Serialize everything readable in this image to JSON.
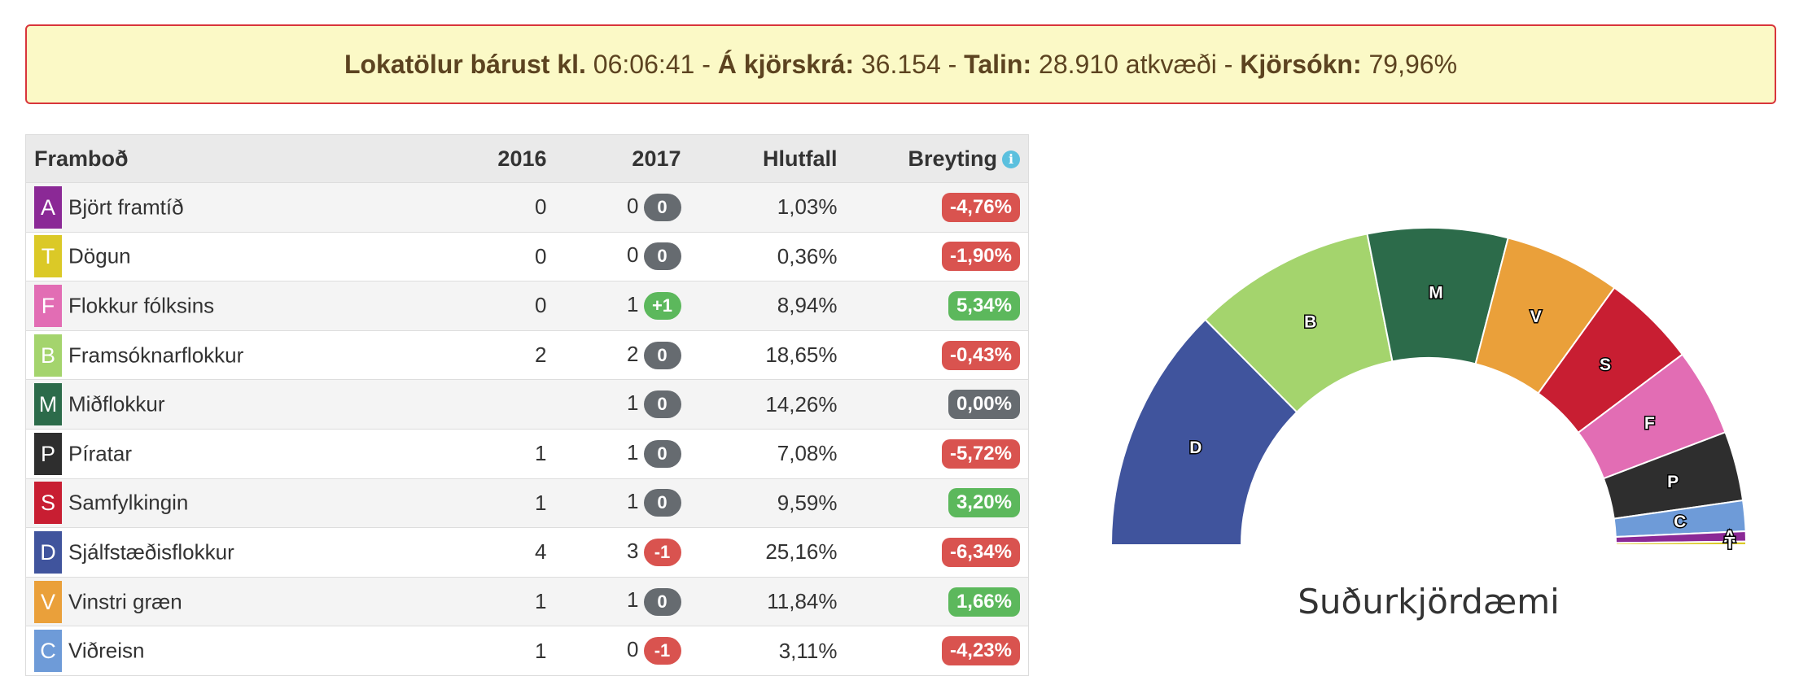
{
  "banner": {
    "received_label": "Lokatölur bárust kl.",
    "received_time": "06:06:41",
    "electorate_label": "Á kjörskrá:",
    "electorate_value": "36.154",
    "counted_label": "Talin:",
    "counted_value": "28.910 atkvæði",
    "turnout_label": "Kjörsókn:",
    "turnout_value": "79,96%"
  },
  "table": {
    "headers": {
      "party": "Framboð",
      "y2016": "2016",
      "y2017": "2017",
      "share": "Hlutfall",
      "change": "Breyting"
    },
    "rows": [
      {
        "letter": "A",
        "color": "#8b2996",
        "name": "Björt framtíð",
        "seats_2016": "0",
        "seats_2017": "0",
        "seat_change": "0",
        "seat_change_color": "#666b70",
        "share": "1,03%",
        "change": "-4,76%",
        "change_color": "#d9534f"
      },
      {
        "letter": "T",
        "color": "#dbc927",
        "name": "Dögun",
        "seats_2016": "0",
        "seats_2017": "0",
        "seat_change": "0",
        "seat_change_color": "#666b70",
        "share": "0,36%",
        "change": "-1,90%",
        "change_color": "#d9534f"
      },
      {
        "letter": "F",
        "color": "#e26db4",
        "name": "Flokkur fólksins",
        "seats_2016": "0",
        "seats_2017": "1",
        "seat_change": "+1",
        "seat_change_color": "#5cb85c",
        "share": "8,94%",
        "change": "5,34%",
        "change_color": "#5cb85c"
      },
      {
        "letter": "B",
        "color": "#a4d46d",
        "name": "Framsóknarflokkur",
        "seats_2016": "2",
        "seats_2017": "2",
        "seat_change": "0",
        "seat_change_color": "#666b70",
        "share": "18,65%",
        "change": "-0,43%",
        "change_color": "#d9534f"
      },
      {
        "letter": "M",
        "color": "#2c6b4a",
        "name": "Miðflokkur",
        "seats_2016": "",
        "seats_2017": "1",
        "seat_change": "0",
        "seat_change_color": "#666b70",
        "share": "14,26%",
        "change": "0,00%",
        "change_color": "#666b70"
      },
      {
        "letter": "P",
        "color": "#2e2e2e",
        "name": "Píratar",
        "seats_2016": "1",
        "seats_2017": "1",
        "seat_change": "0",
        "seat_change_color": "#666b70",
        "share": "7,08%",
        "change": "-5,72%",
        "change_color": "#d9534f"
      },
      {
        "letter": "S",
        "color": "#c81e32",
        "name": "Samfylkingin",
        "seats_2016": "1",
        "seats_2017": "1",
        "seat_change": "0",
        "seat_change_color": "#666b70",
        "share": "9,59%",
        "change": "3,20%",
        "change_color": "#5cb85c"
      },
      {
        "letter": "D",
        "color": "#40549d",
        "name": "Sjálfstæðisflokkur",
        "seats_2016": "4",
        "seats_2017": "3",
        "seat_change": "-1",
        "seat_change_color": "#d9534f",
        "share": "25,16%",
        "change": "-6,34%",
        "change_color": "#d9534f"
      },
      {
        "letter": "V",
        "color": "#eaa03a",
        "name": "Vinstri græn",
        "seats_2016": "1",
        "seats_2017": "1",
        "seat_change": "0",
        "seat_change_color": "#666b70",
        "share": "11,84%",
        "change": "1,66%",
        "change_color": "#5cb85c"
      },
      {
        "letter": "C",
        "color": "#6e9bd8",
        "name": "Viðreisn",
        "seats_2016": "1",
        "seats_2017": "0",
        "seat_change": "-1",
        "seat_change_color": "#d9534f",
        "share": "3,11%",
        "change": "-4,23%",
        "change_color": "#d9534f"
      }
    ]
  },
  "chart_data": {
    "type": "pie",
    "subtype": "half-donut",
    "title": "Suðurkjördæmi",
    "slices": [
      {
        "label": "D",
        "value": 25.16,
        "color": "#40549d"
      },
      {
        "label": "B",
        "value": 18.65,
        "color": "#a4d46d"
      },
      {
        "label": "M",
        "value": 14.26,
        "color": "#2c6b4a"
      },
      {
        "label": "V",
        "value": 11.84,
        "color": "#eaa03a"
      },
      {
        "label": "S",
        "value": 9.59,
        "color": "#c81e32"
      },
      {
        "label": "F",
        "value": 8.94,
        "color": "#e26db4"
      },
      {
        "label": "P",
        "value": 7.08,
        "color": "#2e2e2e"
      },
      {
        "label": "C",
        "value": 3.11,
        "color": "#6e9bd8"
      },
      {
        "label": "A",
        "value": 1.03,
        "color": "#8b2996"
      },
      {
        "label": "T",
        "value": 0.36,
        "color": "#dbc927"
      }
    ]
  }
}
